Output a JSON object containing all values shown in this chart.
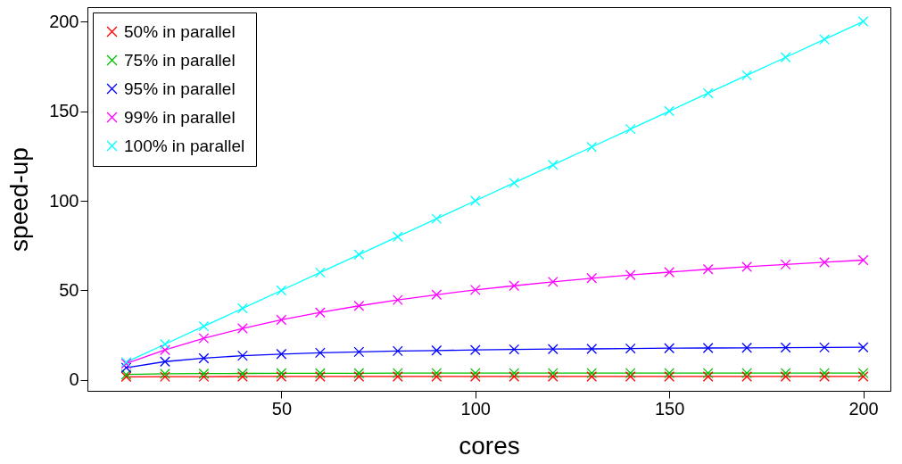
{
  "chart_data": {
    "type": "line",
    "xlabel": "cores",
    "ylabel": "speed-up",
    "x": [
      10,
      20,
      30,
      40,
      50,
      60,
      70,
      80,
      90,
      100,
      110,
      120,
      130,
      140,
      150,
      160,
      170,
      180,
      190,
      200
    ],
    "series": [
      {
        "name": "50% in parallel",
        "color": "#ff0000",
        "values": [
          1.8,
          1.9,
          1.9,
          2.0,
          2.0,
          2.0,
          2.0,
          2.0,
          2.0,
          2.0,
          2.0,
          2.0,
          2.0,
          2.0,
          2.0,
          2.0,
          2.0,
          2.0,
          2.0,
          2.0
        ]
      },
      {
        "name": "75% in parallel",
        "color": "#00c000",
        "values": [
          3.1,
          3.5,
          3.6,
          3.7,
          3.8,
          3.8,
          3.8,
          3.9,
          3.9,
          3.9,
          3.9,
          3.9,
          3.9,
          3.9,
          3.9,
          3.9,
          3.9,
          3.9,
          3.9,
          3.9
        ]
      },
      {
        "name": "95% in parallel",
        "color": "#0000ff",
        "values": [
          6.9,
          10.3,
          12.2,
          13.6,
          14.5,
          15.2,
          15.7,
          16.2,
          16.5,
          16.8,
          17.1,
          17.3,
          17.4,
          17.6,
          17.8,
          17.9,
          18.0,
          18.1,
          18.2,
          18.3
        ]
      },
      {
        "name": "99% in parallel",
        "color": "#ff00ff",
        "values": [
          9.2,
          16.8,
          23.3,
          28.8,
          33.6,
          37.7,
          41.4,
          44.7,
          47.6,
          50.3,
          52.6,
          54.8,
          56.8,
          58.6,
          60.2,
          61.8,
          63.2,
          64.5,
          65.7,
          66.9
        ]
      },
      {
        "name": "100% in parallel",
        "color": "#00ffff",
        "values": [
          10,
          20,
          30,
          40,
          50,
          60,
          70,
          80,
          90,
          100,
          110,
          120,
          130,
          140,
          150,
          160,
          170,
          180,
          190,
          200
        ]
      }
    ],
    "xlim": [
      0,
      207
    ],
    "xticks": [
      50,
      100,
      150,
      200
    ],
    "ylim": [
      -6,
      208
    ],
    "yticks": [
      0,
      50,
      100,
      150,
      200
    ],
    "grid": false,
    "legend": "top left",
    "marker": "cross",
    "line_style": "solid"
  }
}
